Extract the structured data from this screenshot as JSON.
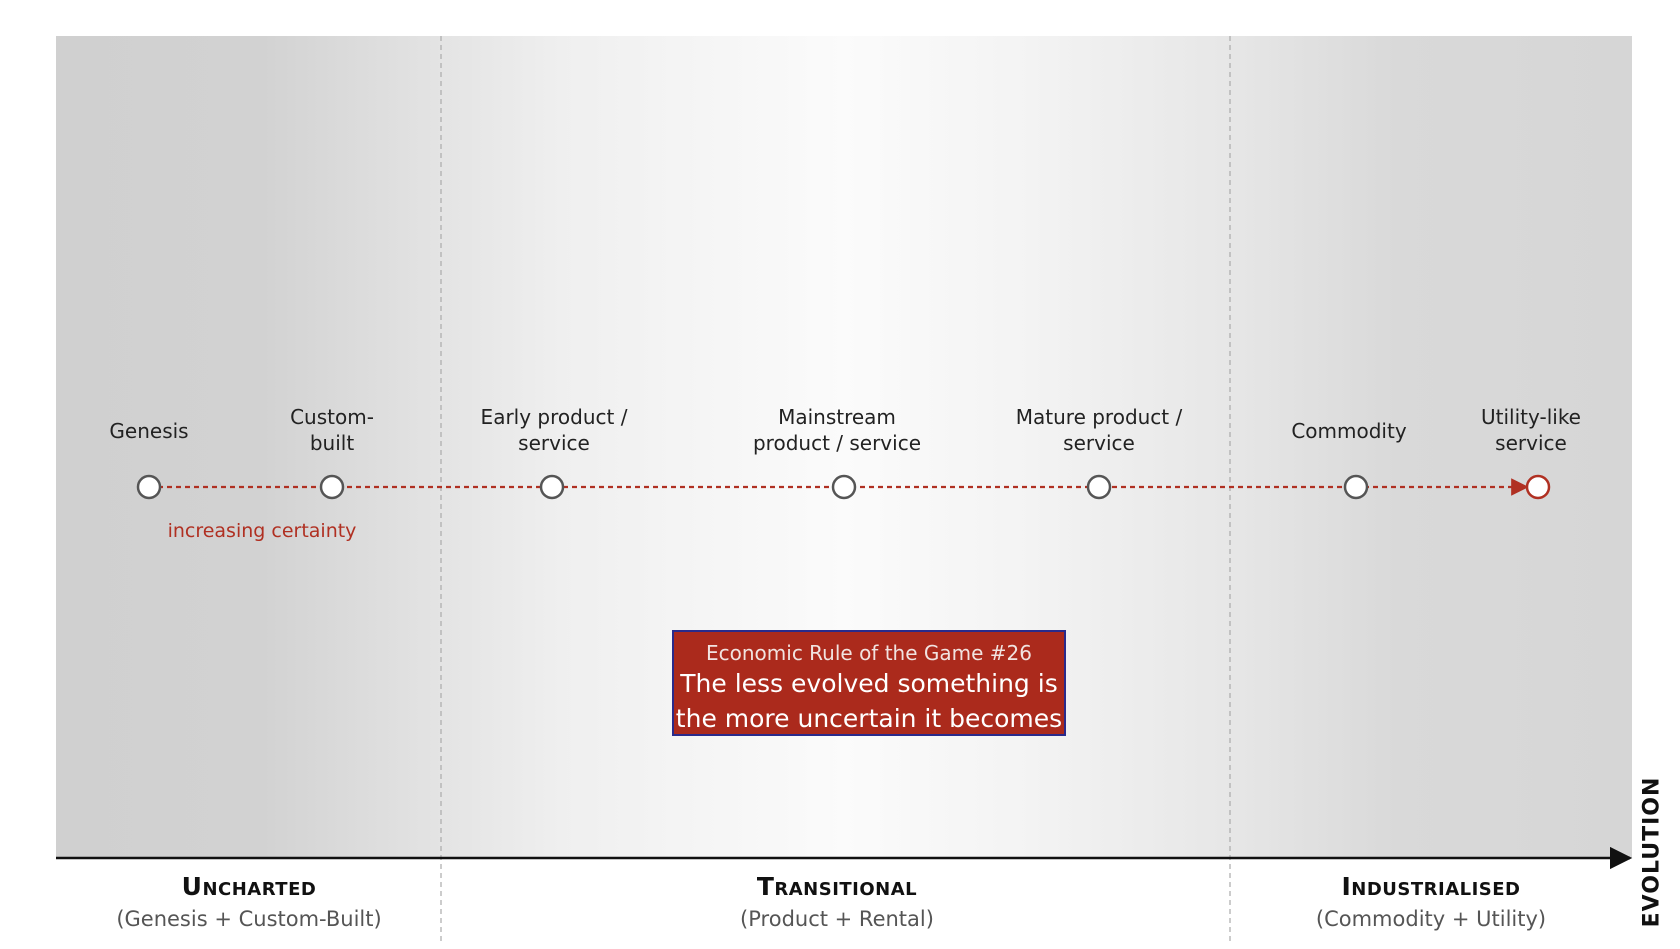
{
  "stages": [
    {
      "id": "genesis",
      "label": "Genesis"
    },
    {
      "id": "custom-built",
      "label": "Custom-\nbuilt"
    },
    {
      "id": "early-product",
      "label": "Early product /\nservice"
    },
    {
      "id": "mainstream-product",
      "label": "Mainstream\nproduct / service"
    },
    {
      "id": "mature-product",
      "label": "Mature product /\nservice"
    },
    {
      "id": "commodity",
      "label": "Commodity"
    },
    {
      "id": "utility-like",
      "label": "Utility-like\nservice"
    }
  ],
  "certainty_label": "increasing certainty",
  "rule": {
    "title": "Economic Rule of the Game #26",
    "line1": "The less evolved something is",
    "line2": "the more uncertain it becomes"
  },
  "phases": [
    {
      "id": "uncharted",
      "name": "Uncharted",
      "sub": "(Genesis + Custom-Built)"
    },
    {
      "id": "transitional",
      "name": "Transitional",
      "sub": "(Product + Rental)"
    },
    {
      "id": "industrialised",
      "name": "Industrialised",
      "sub": "(Commodity + Utility)"
    }
  ],
  "axis_label": "EVOLUTION",
  "colors": {
    "accent": "#b03022",
    "rule_box": "#ab2a1c",
    "rule_border": "#2a2a8a",
    "node_stroke": "#555555",
    "band_dark": "#d2d2d2"
  }
}
